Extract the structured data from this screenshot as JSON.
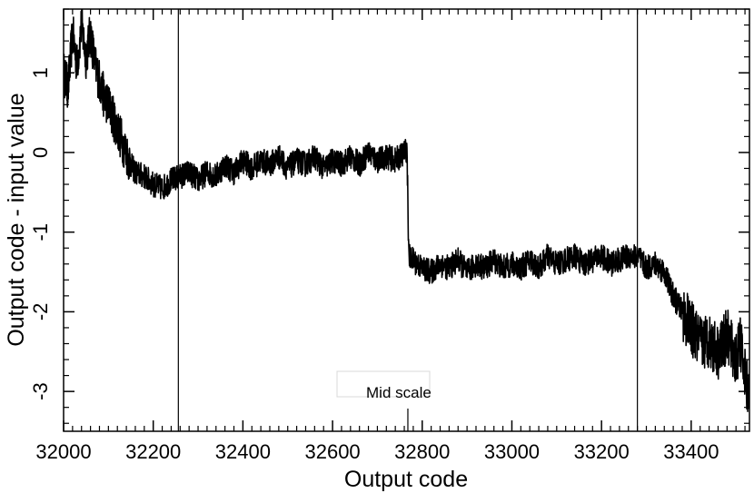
{
  "chart_data": {
    "type": "line",
    "title": "",
    "xlabel": "Output code",
    "ylabel": "Output code - input value",
    "xlim": [
      32000,
      33530
    ],
    "ylim": [
      -3.5,
      1.8
    ],
    "x_ticks": [
      "32000",
      "32200",
      "32400",
      "32600",
      "32800",
      "33000",
      "33200",
      "33400"
    ],
    "y_ticks": [
      "-3",
      "-2",
      "-1",
      "0",
      "1"
    ],
    "grid": false,
    "vertical_lines": [
      32256,
      33280
    ],
    "annotation": {
      "text": "Mid scale",
      "x": 32768
    },
    "series": [
      {
        "x": [
          32000,
          32010,
          32020,
          32030,
          32040,
          32050,
          32060,
          32070,
          32080,
          32090,
          32100,
          32110,
          32120,
          32130,
          32140,
          32150,
          32160,
          32180,
          32200,
          32220,
          32240,
          32260,
          32280,
          32300,
          32320,
          32340,
          32360,
          32380,
          32400,
          32420,
          32440,
          32460,
          32480,
          32500,
          32520,
          32540,
          32560,
          32580,
          32600,
          32620,
          32640,
          32660,
          32680,
          32700,
          32720,
          32740,
          32760,
          32766,
          32768,
          32770,
          32790,
          32800,
          32820,
          32840,
          32860,
          32880,
          32900,
          32920,
          32940,
          32960,
          32980,
          33000,
          33020,
          33040,
          33060,
          33080,
          33100,
          33120,
          33140,
          33160,
          33180,
          33200,
          33220,
          33240,
          33260,
          33280,
          33300,
          33320,
          33340,
          33360,
          33380,
          33400,
          33420,
          33440,
          33460,
          33480,
          33500,
          33510,
          33520,
          33530
        ],
        "y": [
          1.0,
          0.8,
          1.5,
          1.1,
          1.6,
          1.2,
          1.5,
          1.1,
          0.9,
          0.7,
          0.6,
          0.45,
          0.3,
          0.15,
          0.0,
          -0.15,
          -0.25,
          -0.3,
          -0.4,
          -0.45,
          -0.35,
          -0.3,
          -0.25,
          -0.35,
          -0.25,
          -0.3,
          -0.15,
          -0.25,
          -0.1,
          -0.2,
          -0.1,
          -0.15,
          -0.05,
          -0.2,
          -0.1,
          -0.15,
          -0.05,
          -0.2,
          -0.1,
          -0.15,
          -0.05,
          -0.15,
          0.0,
          -0.1,
          -0.05,
          -0.1,
          0.0,
          0.05,
          -0.6,
          -1.3,
          -1.4,
          -1.45,
          -1.5,
          -1.4,
          -1.45,
          -1.35,
          -1.5,
          -1.4,
          -1.45,
          -1.35,
          -1.45,
          -1.4,
          -1.45,
          -1.35,
          -1.45,
          -1.3,
          -1.4,
          -1.35,
          -1.3,
          -1.4,
          -1.35,
          -1.3,
          -1.4,
          -1.35,
          -1.3,
          -1.3,
          -1.45,
          -1.4,
          -1.5,
          -1.8,
          -2.0,
          -2.2,
          -2.4,
          -2.35,
          -2.5,
          -2.3,
          -2.6,
          -2.4,
          -2.8,
          -3.0
        ]
      }
    ]
  }
}
